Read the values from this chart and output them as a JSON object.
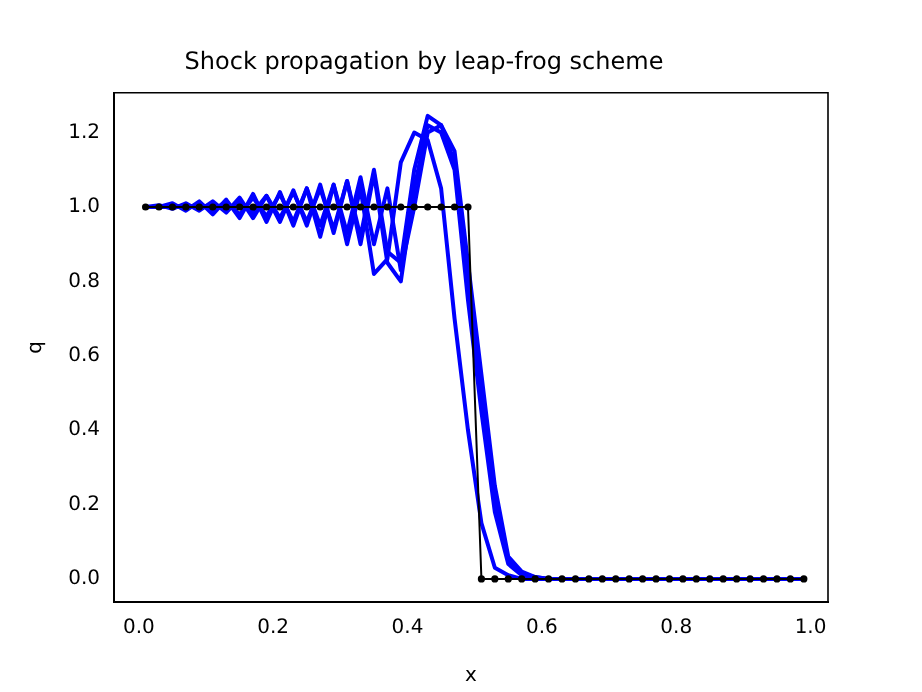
{
  "chart_data": {
    "type": "line",
    "title": "Shock propagation by leap-frog scheme",
    "xlabel": "x",
    "ylabel": "q",
    "x": [
      0.01,
      0.03,
      0.05,
      0.07,
      0.09,
      0.11,
      0.13,
      0.15,
      0.17,
      0.19,
      0.21,
      0.23,
      0.25,
      0.27,
      0.29,
      0.31,
      0.33,
      0.35,
      0.37,
      0.39,
      0.41,
      0.43,
      0.45,
      0.47,
      0.49,
      0.51,
      0.53,
      0.55,
      0.57,
      0.59,
      0.61,
      0.63,
      0.65,
      0.67,
      0.69,
      0.71,
      0.73,
      0.75,
      0.77,
      0.79,
      0.81,
      0.83,
      0.85,
      0.87,
      0.89,
      0.91,
      0.93,
      0.95,
      0.97,
      0.99
    ],
    "series": [
      {
        "color": "#0000ff",
        "marker": "none",
        "values": [
          1,
          1,
          1,
          1.005,
          0.995,
          1.01,
          0.99,
          1.015,
          0.985,
          1.03,
          0.97,
          1.04,
          0.96,
          1.05,
          0.94,
          1.07,
          0.92,
          1.1,
          0.88,
          0.85,
          1.1,
          1.245,
          1.22,
          1.15,
          0.85,
          0.55,
          0.25,
          0.06,
          0.02,
          0.005,
          0,
          0,
          0,
          0,
          0,
          0,
          0,
          0,
          0,
          0,
          0,
          0,
          0,
          0,
          0,
          0,
          0,
          0,
          0,
          0
        ]
      },
      {
        "color": "#0000ff",
        "marker": "none",
        "values": [
          1,
          1,
          1.005,
          0.995,
          1.01,
          0.99,
          1.015,
          0.98,
          1.025,
          0.975,
          1.035,
          0.96,
          1.05,
          0.95,
          1.06,
          0.93,
          1.08,
          0.9,
          1.05,
          0.83,
          1.0,
          1.2,
          1.22,
          1.12,
          0.8,
          0.5,
          0.22,
          0.05,
          0.015,
          0.005,
          0,
          0,
          0,
          0,
          0,
          0,
          0,
          0,
          0,
          0,
          0,
          0,
          0,
          0,
          0,
          0,
          0,
          0,
          0,
          0
        ]
      },
      {
        "color": "#0000ff",
        "marker": "none",
        "values": [
          1,
          1.005,
          0.995,
          1.01,
          0.99,
          1.015,
          0.985,
          1.025,
          0.97,
          1.03,
          0.96,
          1.045,
          0.95,
          1.06,
          0.93,
          1.07,
          0.9,
          1.09,
          0.85,
          0.8,
          1.05,
          1.22,
          1.2,
          1.1,
          0.75,
          0.45,
          0.18,
          0.04,
          0.01,
          0.003,
          0,
          0,
          0,
          0,
          0,
          0,
          0,
          0,
          0,
          0,
          0,
          0,
          0,
          0,
          0,
          0,
          0,
          0,
          0,
          0
        ]
      },
      {
        "color": "#0000ff",
        "marker": "none",
        "values": [
          1,
          1,
          1.01,
          0.99,
          1.015,
          0.98,
          1.02,
          0.97,
          1.035,
          0.96,
          1.04,
          0.95,
          1.05,
          0.92,
          1.06,
          0.9,
          1.05,
          0.82,
          0.86,
          1.12,
          1.2,
          1.18,
          1.05,
          0.7,
          0.4,
          0.15,
          0.03,
          0.01,
          0,
          0,
          0,
          0,
          0,
          0,
          0,
          0,
          0,
          0,
          0,
          0,
          0,
          0,
          0,
          0,
          0,
          0,
          0,
          0,
          0,
          0
        ]
      },
      {
        "color": "#000000",
        "marker": "circle",
        "values": [
          1,
          1,
          1,
          1,
          1,
          1,
          1,
          1,
          1,
          1,
          1,
          1,
          1,
          1,
          1,
          1,
          1,
          1,
          1,
          1,
          1,
          1,
          1,
          1,
          1,
          0,
          0,
          0,
          0,
          0,
          0,
          0,
          0,
          0,
          0,
          0,
          0,
          0,
          0,
          0,
          0,
          0,
          0,
          0,
          0,
          0,
          0,
          0,
          0,
          0
        ]
      }
    ],
    "xlim": [
      -0.037,
      1.026
    ],
    "ylim": [
      -0.062,
      1.307
    ],
    "xticks": [
      {
        "value": 0,
        "label": "0.0"
      },
      0.2,
      0.4,
      0.6,
      0.8,
      {
        "value": 1,
        "label": "1.0"
      }
    ],
    "yticks": [
      {
        "value": 0,
        "label": "0.0"
      },
      0.2,
      0.4,
      0.6,
      0.8,
      {
        "value": 1,
        "label": "1.0"
      },
      1.2
    ],
    "grid": false,
    "legend": false
  }
}
